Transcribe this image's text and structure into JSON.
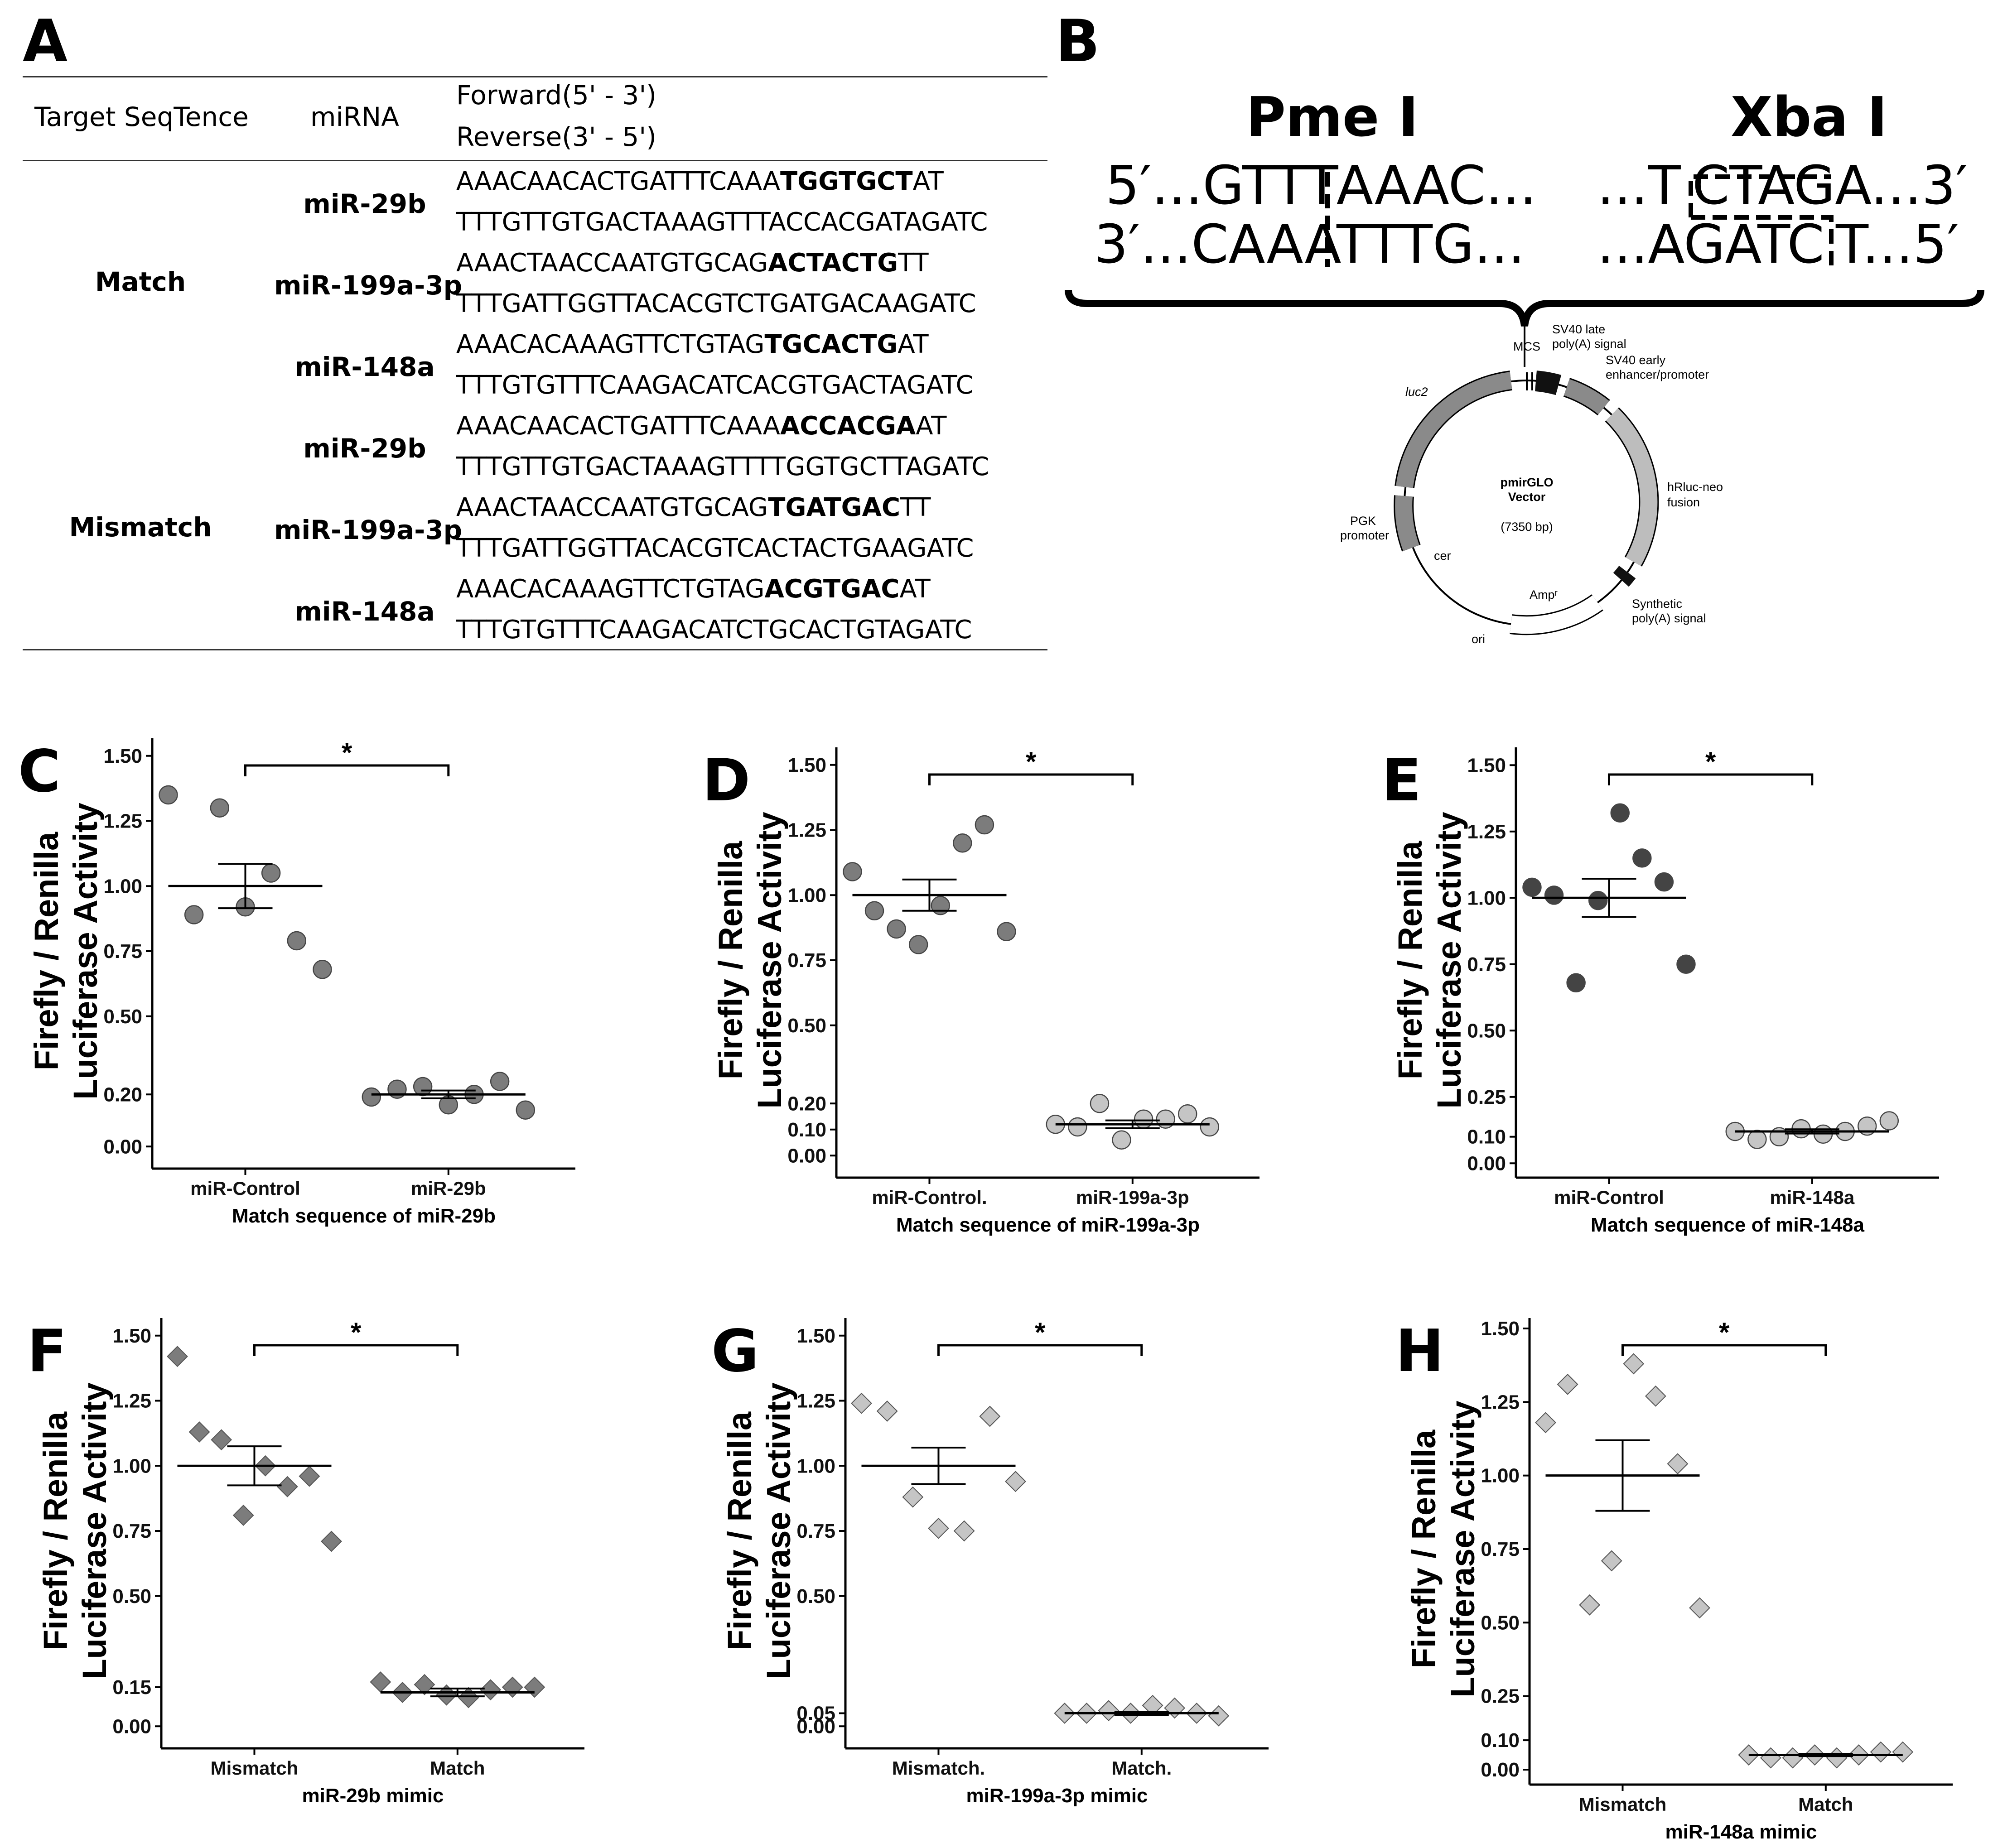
{
  "panel_letters": {
    "A": "A",
    "B": "B",
    "C": "C",
    "D": "D",
    "E": "E",
    "F": "F",
    "G": "G",
    "H": "H"
  },
  "table": {
    "header_target": "Target SeqTence",
    "header_mirna": "miRNA",
    "header_forward": "Forward(5' - 3')",
    "header_reverse": "Reverse(3' - 5')",
    "group_match": "Match",
    "group_mismatch": "Mismatch",
    "rows": [
      {
        "mirna": "miR-29b",
        "fwd_pre": "AAACAACACTGATTTCAAA",
        "fwd_bold": "TGGTGCT",
        "fwd_post": "AT",
        "rev": "TTTGTTGTGACTAAAGTTTACCACGATAGATC"
      },
      {
        "mirna": "miR-199a-3p",
        "fwd_pre": "AAACTAACCAATGTGCAG",
        "fwd_bold": "ACTACTG",
        "fwd_post": "TT",
        "rev": "TTTGATTGGTTACACGTCTGATGACAAGATC"
      },
      {
        "mirna": "miR-148a",
        "fwd_pre": "AAACACAAAGTTCTGTAG",
        "fwd_bold": "TGCACTG",
        "fwd_post": "AT",
        "rev": "TTTGTGTTTCAAGACATCACGTGACTAGATC"
      },
      {
        "mirna": "miR-29b",
        "fwd_pre": "AAACAACACTGATTTCAAA",
        "fwd_bold": "ACCACGA",
        "fwd_post": "AT",
        "rev": "TTTGTTGTGACTAAAGTTTTGGTGCTTAGATC"
      },
      {
        "mirna": "miR-199a-3p",
        "fwd_pre": "AAACTAACCAATGTGCAG",
        "fwd_bold": "TGATGAC",
        "fwd_post": "TT",
        "rev": "TTTGATTGGTTACACGTCACTACTGAAGATC"
      },
      {
        "mirna": "miR-148a",
        "fwd_pre": "AAACACAAAGTTCTGTAG",
        "fwd_bold": "ACGTGAC",
        "fwd_post": "AT",
        "rev": "TTTGTGTTTCAAGACATCTGCACTGTAGATC"
      }
    ]
  },
  "panel_b": {
    "enzyme1": "Pme I",
    "enzyme2": "Xba I",
    "pme_top_left": "5′...GTTT",
    "pme_top_right": "AAAC...",
    "pme_bot_left": "3′...CAAA",
    "pme_bot_right": "TTTG...",
    "xba_top_left": "...T",
    "xba_top_right": "CTAGA...3′",
    "xba_bot_left": "...AGATC",
    "xba_bot_right": "T...5′",
    "vector_name": "pmirGLO",
    "vector_word": "Vector",
    "vector_size": "(7350 bp)",
    "features": {
      "mcs": "MCS",
      "sv40_late_1": "SV40 late",
      "sv40_late_2": "poly(A) signal",
      "sv40_early_1": "SV40 early",
      "sv40_early_2": "enhancer/promoter",
      "luc2": "luc2",
      "hrluc_1": "hRluc-neo",
      "hrluc_2": "fusion",
      "pgk_1": "PGK",
      "pgk_2": "promoter",
      "cer": "cer",
      "amp": "Ampʳ",
      "synth_1": "Synthetic",
      "synth_2": "poly(A) signal",
      "ori": "ori"
    }
  },
  "chart_data": [
    {
      "panel": "C",
      "type": "scatter",
      "ylabel_1": "Firefly / Renilla",
      "ylabel_2": "Luciferase Activity",
      "xlabel": "Match sequence of miR-29b",
      "categories": [
        "miR-Control",
        "miR-29b"
      ],
      "yticks": [
        "0.00",
        "0.20",
        "0.50",
        "0.75",
        "1.00",
        "1.25",
        "1.50"
      ],
      "ylim": [
        -0.05,
        1.55
      ],
      "marker": "circle",
      "colors": [
        "#757575",
        "#757575"
      ],
      "significance": "*",
      "series": [
        {
          "values": [
            1.35,
            0.89,
            1.3,
            0.92,
            1.05,
            0.79,
            0.68
          ],
          "mean": 1.0,
          "sem": 0.085
        },
        {
          "values": [
            0.19,
            0.22,
            0.23,
            0.16,
            0.2,
            0.25,
            0.14
          ],
          "mean": 0.2,
          "sem": 0.015
        }
      ]
    },
    {
      "panel": "D",
      "type": "scatter",
      "ylabel_1": "Firefly / Renilla",
      "ylabel_2": "Luciferase Activity",
      "xlabel": "Match sequence of miR-199a-3p",
      "categories": [
        "miR-Control.",
        "miR-199a-3p"
      ],
      "yticks": [
        "0.00",
        "0.10",
        "0.20",
        "0.50",
        "0.75",
        "1.00",
        "1.25",
        "1.50"
      ],
      "ylim": [
        -0.05,
        1.55
      ],
      "marker": "circle",
      "colors": [
        "#757575",
        "#c2c2c2"
      ],
      "significance": "*",
      "series": [
        {
          "values": [
            1.09,
            0.94,
            0.87,
            0.81,
            0.96,
            1.2,
            1.27,
            0.86
          ],
          "mean": 1.0,
          "sem": 0.06
        },
        {
          "values": [
            0.12,
            0.11,
            0.2,
            0.06,
            0.14,
            0.14,
            0.16,
            0.11
          ],
          "mean": 0.12,
          "sem": 0.015
        }
      ]
    },
    {
      "panel": "E",
      "type": "scatter",
      "ylabel_1": "Firefly / Renilla",
      "ylabel_2": "Luciferase Activity",
      "xlabel": "Match sequence of miR-148a",
      "categories": [
        "miR-Control",
        "miR-148a"
      ],
      "yticks": [
        "0.00",
        "0.10",
        "0.25",
        "0.50",
        "0.75",
        "1.00",
        "1.25",
        "1.50"
      ],
      "ylim": [
        -0.02,
        1.55
      ],
      "marker": "circle",
      "colors": [
        "#3a3a3a",
        "#c2c2c2"
      ],
      "significance": "*",
      "series": [
        {
          "values": [
            1.04,
            1.01,
            0.68,
            0.99,
            1.32,
            1.15,
            1.06,
            0.75
          ],
          "mean": 1.0,
          "sem": 0.072
        },
        {
          "values": [
            0.12,
            0.09,
            0.1,
            0.13,
            0.11,
            0.12,
            0.14,
            0.16
          ],
          "mean": 0.12,
          "sem": 0.008
        }
      ]
    },
    {
      "panel": "F",
      "type": "scatter",
      "ylabel_1": "Firefly / Renilla",
      "ylabel_2": "Luciferase Activity",
      "xlabel": "miR-29b mimic",
      "categories": [
        "Mismatch",
        "Match"
      ],
      "yticks": [
        "0.00",
        "0.15",
        "0.50",
        "0.75",
        "1.00",
        "1.25",
        "1.50"
      ],
      "ylim": [
        -0.05,
        1.55
      ],
      "marker": "diamond",
      "colors": [
        "#757575",
        "#757575"
      ],
      "significance": "*",
      "series": [
        {
          "values": [
            1.42,
            1.13,
            1.1,
            0.81,
            1.0,
            0.92,
            0.96,
            0.71
          ],
          "mean": 1.0,
          "sem": 0.075
        },
        {
          "values": [
            0.17,
            0.13,
            0.16,
            0.12,
            0.11,
            0.14,
            0.15,
            0.15
          ],
          "mean": 0.13,
          "sem": 0.015
        }
      ]
    },
    {
      "panel": "G",
      "type": "scatter",
      "ylabel_1": "Firefly / Renilla",
      "ylabel_2": "Luciferase Activity",
      "xlabel": "miR-199a-3p mimic",
      "categories": [
        "Mismatch.",
        "Match."
      ],
      "yticks": [
        "0.00",
        "0.05",
        "0.50",
        "0.75",
        "1.00",
        "1.25",
        "1.50"
      ],
      "ylim": [
        -0.05,
        1.55
      ],
      "marker": "diamond",
      "colors": [
        "#c2c2c2",
        "#c2c2c2"
      ],
      "significance": "*",
      "series": [
        {
          "values": [
            1.24,
            1.21,
            0.88,
            0.76,
            0.75,
            1.19,
            0.94
          ],
          "mean": 1.0,
          "sem": 0.07
        },
        {
          "values": [
            0.05,
            0.05,
            0.06,
            0.05,
            0.08,
            0.07,
            0.05,
            0.04
          ],
          "mean": 0.05,
          "sem": 0.006
        }
      ]
    },
    {
      "panel": "H",
      "type": "scatter",
      "ylabel_1": "Firefly / Renilla",
      "ylabel_2": "Luciferase Activity",
      "xlabel": "miR-148a mimic",
      "categories": [
        "Mismatch",
        "Match"
      ],
      "yticks": [
        "0.00",
        "0.10",
        "0.25",
        "0.50",
        "0.75",
        "1.00",
        "1.25",
        "1.50"
      ],
      "ylim": [
        -0.02,
        1.52
      ],
      "marker": "diamond",
      "colors": [
        "#c2c2c2",
        "#c2c2c2"
      ],
      "significance": "*",
      "series": [
        {
          "values": [
            1.18,
            1.31,
            0.56,
            0.71,
            1.38,
            1.27,
            1.04,
            0.55
          ],
          "mean": 1.0,
          "sem": 0.12
        },
        {
          "values": [
            0.05,
            0.04,
            0.04,
            0.05,
            0.04,
            0.05,
            0.06,
            0.06
          ],
          "mean": 0.05,
          "sem": 0.004
        }
      ]
    }
  ]
}
